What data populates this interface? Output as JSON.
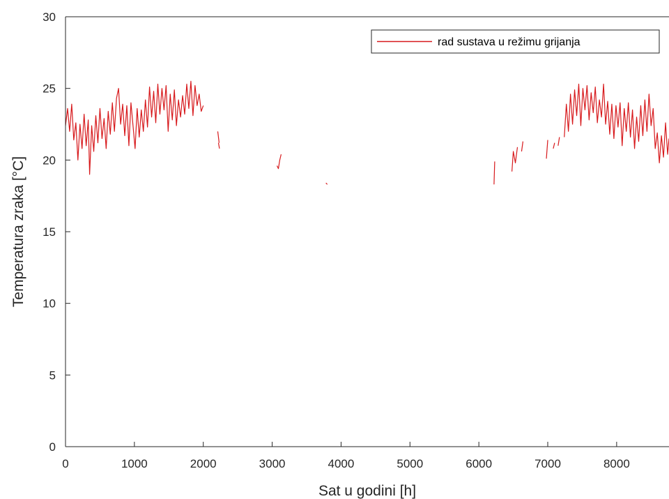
{
  "chart_data": {
    "type": "line",
    "title": "",
    "xlabel": "Sat u godini [h]",
    "ylabel": "Temperatura zraka [°C]",
    "xlim": [
      0,
      8760
    ],
    "ylim": [
      0,
      30
    ],
    "xticks": [
      0,
      1000,
      2000,
      3000,
      4000,
      5000,
      6000,
      7000,
      8000
    ],
    "yticks": [
      0,
      5,
      10,
      15,
      20,
      25,
      30
    ],
    "legend_position": "top-right",
    "grid": false,
    "series_color": "#d7191c",
    "series": [
      {
        "name": "rad sustava u režimu grijanja",
        "segments": [
          [
            [
              0,
              22.4
            ],
            [
              30,
              23.6
            ],
            [
              60,
              22.0
            ],
            [
              90,
              23.9
            ],
            [
              120,
              21.4
            ],
            [
              150,
              22.6
            ],
            [
              180,
              20.0
            ],
            [
              210,
              22.5
            ],
            [
              240,
              20.8
            ],
            [
              270,
              23.2
            ],
            [
              300,
              21.0
            ],
            [
              330,
              22.8
            ],
            [
              350,
              19.0
            ],
            [
              380,
              22.4
            ],
            [
              410,
              20.6
            ],
            [
              440,
              23.1
            ],
            [
              470,
              21.2
            ],
            [
              500,
              23.6
            ],
            [
              530,
              21.5
            ],
            [
              560,
              22.9
            ],
            [
              590,
              20.8
            ],
            [
              620,
              23.4
            ],
            [
              650,
              21.8
            ],
            [
              680,
              24.0
            ],
            [
              710,
              22.0
            ],
            [
              740,
              24.3
            ],
            [
              770,
              25.0
            ],
            [
              800,
              22.5
            ],
            [
              830,
              23.9
            ],
            [
              860,
              21.7
            ],
            [
              890,
              23.8
            ],
            [
              920,
              21.0
            ],
            [
              950,
              24.0
            ],
            [
              980,
              22.4
            ],
            [
              1010,
              20.8
            ],
            [
              1040,
              23.6
            ],
            [
              1070,
              21.6
            ],
            [
              1100,
              23.5
            ],
            [
              1130,
              22.0
            ],
            [
              1160,
              24.2
            ],
            [
              1190,
              22.3
            ],
            [
              1220,
              25.1
            ],
            [
              1250,
              23.0
            ],
            [
              1280,
              24.8
            ],
            [
              1310,
              22.6
            ],
            [
              1340,
              25.3
            ],
            [
              1370,
              23.2
            ],
            [
              1400,
              25.0
            ],
            [
              1430,
              23.5
            ],
            [
              1460,
              25.2
            ],
            [
              1490,
              22.0
            ],
            [
              1520,
              24.6
            ],
            [
              1550,
              22.8
            ],
            [
              1580,
              24.9
            ],
            [
              1610,
              22.4
            ],
            [
              1640,
              24.2
            ],
            [
              1670,
              23.0
            ],
            [
              1700,
              24.5
            ],
            [
              1730,
              23.2
            ],
            [
              1760,
              25.3
            ],
            [
              1790,
              23.6
            ],
            [
              1820,
              25.5
            ],
            [
              1850,
              23.1
            ],
            [
              1880,
              25.2
            ],
            [
              1910,
              23.8
            ],
            [
              1940,
              24.6
            ],
            [
              1970,
              23.4
            ],
            [
              2000,
              23.8
            ]
          ],
          [
            [
              2210,
              22.0
            ],
            [
              2230,
              21.2
            ]
          ],
          [
            [
              2220,
              21.2
            ],
            [
              2235,
              20.8
            ]
          ],
          [
            [
              3070,
              19.6
            ],
            [
              3090,
              19.4
            ],
            [
              3110,
              20.0
            ],
            [
              3130,
              20.4
            ]
          ],
          [
            [
              3780,
              18.4
            ],
            [
              3800,
              18.3
            ]
          ],
          [
            [
              6220,
              18.3
            ],
            [
              6230,
              19.9
            ]
          ],
          [
            [
              6480,
              19.2
            ],
            [
              6500,
              20.6
            ],
            [
              6530,
              19.8
            ],
            [
              6560,
              20.9
            ]
          ],
          [
            [
              6620,
              20.6
            ],
            [
              6640,
              21.3
            ]
          ],
          [
            [
              6980,
              20.1
            ],
            [
              7000,
              21.4
            ]
          ],
          [
            [
              7080,
              20.8
            ],
            [
              7100,
              21.2
            ]
          ],
          [
            [
              7150,
              21.0
            ],
            [
              7170,
              21.6
            ]
          ],
          [
            [
              7240,
              21.6
            ],
            [
              7270,
              23.9
            ],
            [
              7300,
              22.0
            ],
            [
              7330,
              24.6
            ],
            [
              7360,
              22.5
            ],
            [
              7390,
              24.9
            ],
            [
              7420,
              23.1
            ],
            [
              7450,
              25.3
            ],
            [
              7480,
              22.4
            ],
            [
              7510,
              25.0
            ],
            [
              7540,
              23.5
            ],
            [
              7570,
              25.2
            ],
            [
              7600,
              22.8
            ],
            [
              7630,
              24.7
            ],
            [
              7660,
              23.3
            ],
            [
              7690,
              25.1
            ],
            [
              7720,
              22.6
            ],
            [
              7750,
              24.2
            ],
            [
              7780,
              23.0
            ],
            [
              7810,
              25.3
            ],
            [
              7840,
              22.5
            ],
            [
              7870,
              24.1
            ],
            [
              7900,
              21.8
            ],
            [
              7930,
              23.9
            ],
            [
              7960,
              21.5
            ],
            [
              7990,
              23.8
            ],
            [
              8020,
              22.3
            ],
            [
              8050,
              24.0
            ],
            [
              8080,
              21.0
            ],
            [
              8110,
              23.6
            ],
            [
              8140,
              22.0
            ],
            [
              8170,
              24.0
            ],
            [
              8200,
              21.6
            ],
            [
              8230,
              23.5
            ],
            [
              8260,
              20.8
            ],
            [
              8290,
              23.0
            ],
            [
              8320,
              21.3
            ],
            [
              8350,
              23.8
            ],
            [
              8380,
              21.7
            ],
            [
              8410,
              24.2
            ],
            [
              8440,
              22.0
            ],
            [
              8470,
              24.6
            ],
            [
              8500,
              22.4
            ],
            [
              8530,
              23.6
            ],
            [
              8560,
              20.8
            ],
            [
              8590,
              21.9
            ],
            [
              8620,
              19.8
            ],
            [
              8650,
              21.7
            ],
            [
              8680,
              20.2
            ],
            [
              8710,
              22.6
            ],
            [
              8740,
              20.4
            ],
            [
              8760,
              21.5
            ]
          ]
        ]
      }
    ]
  }
}
